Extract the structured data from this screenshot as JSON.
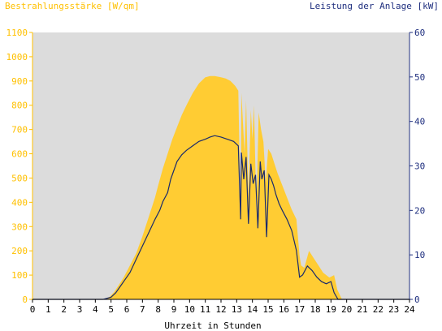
{
  "chart_data": {
    "type": "area",
    "left_axis_title": "Bestrahlungsstärke [W/qm]",
    "right_axis_title": "Leistung der Anlage [kW]",
    "xlabel": "Uhrzeit in Stunden",
    "xlim": [
      0,
      24
    ],
    "x_ticks": [
      "0",
      "1",
      "2",
      "3",
      "4",
      "5",
      "6",
      "7",
      "8",
      "9",
      "10",
      "11",
      "12",
      "13",
      "14",
      "15",
      "16",
      "17",
      "18",
      "19",
      "20",
      "21",
      "22",
      "23",
      "24"
    ],
    "y_left_lim": [
      0,
      1100
    ],
    "y_left_ticks": [
      "0",
      "100",
      "200",
      "300",
      "400",
      "500",
      "600",
      "700",
      "800",
      "900",
      "1000",
      "1100"
    ],
    "y_right_lim": [
      0,
      60
    ],
    "y_right_ticks": [
      "0",
      "10",
      "20",
      "30",
      "40",
      "50",
      "60"
    ],
    "grid": false,
    "colors": {
      "irradiance": "#ffcc33",
      "power": "#1a2a6c",
      "plot_bg": "#dcdcdc",
      "left_axis_text": "#ffc000",
      "right_axis_text": "#1f2f7f"
    },
    "series": [
      {
        "axis": "left",
        "style": "area",
        "x": [
          0,
          4.5,
          4.9,
          5.2,
          5.5,
          5.8,
          6.2,
          6.6,
          7.0,
          7.4,
          7.8,
          8.0,
          8.3,
          8.6,
          8.9,
          9.2,
          9.5,
          9.8,
          10.2,
          10.6,
          11.0,
          11.3,
          11.6,
          12.0,
          12.3,
          12.6,
          12.9,
          13.1,
          13.25,
          13.3,
          13.5,
          13.6,
          13.75,
          13.9,
          14.0,
          14.1,
          14.25,
          14.4,
          14.55,
          14.7,
          14.85,
          15.0,
          15.2,
          15.4,
          15.6,
          15.9,
          16.2,
          16.5,
          16.8,
          17.0,
          17.1,
          17.3,
          17.6,
          17.9,
          18.2,
          18.5,
          18.9,
          19.2,
          19.4,
          19.7,
          20.0,
          24
        ],
        "y": [
          0,
          0,
          10,
          30,
          60,
          90,
          140,
          190,
          260,
          340,
          420,
          470,
          540,
          600,
          660,
          710,
          760,
          800,
          850,
          890,
          915,
          920,
          920,
          915,
          910,
          900,
          880,
          860,
          330,
          850,
          600,
          820,
          420,
          780,
          660,
          800,
          360,
          770,
          700,
          650,
          480,
          620,
          600,
          560,
          520,
          470,
          420,
          370,
          330,
          180,
          140,
          130,
          200,
          170,
          140,
          110,
          90,
          100,
          40,
          0,
          0,
          0
        ]
      },
      {
        "axis": "right",
        "style": "line",
        "x": [
          0,
          4.5,
          5.0,
          5.3,
          5.6,
          5.9,
          6.2,
          6.6,
          7.0,
          7.4,
          7.8,
          8.1,
          8.3,
          8.6,
          8.8,
          9.0,
          9.2,
          9.5,
          9.8,
          10.2,
          10.6,
          11.0,
          11.3,
          11.6,
          12.0,
          12.4,
          12.8,
          13.1,
          13.25,
          13.3,
          13.45,
          13.6,
          13.75,
          13.9,
          14.05,
          14.2,
          14.35,
          14.5,
          14.6,
          14.75,
          14.9,
          15.05,
          15.2,
          15.35,
          15.5,
          15.7,
          15.9,
          16.2,
          16.5,
          16.8,
          17.0,
          17.2,
          17.5,
          17.8,
          18.1,
          18.4,
          18.7,
          19.0,
          19.2,
          19.45,
          19.7,
          24
        ],
        "y": [
          0,
          0,
          0.5,
          1.5,
          3,
          4.5,
          6,
          9,
          12,
          15,
          18,
          20,
          22,
          24,
          27,
          29,
          31,
          32.5,
          33.5,
          34.5,
          35.5,
          36,
          36.5,
          36.8,
          36.5,
          36,
          35.5,
          34.5,
          18,
          33,
          27,
          32,
          17,
          30.5,
          26,
          28,
          16,
          31,
          27,
          29,
          14,
          28,
          27,
          25.5,
          23.5,
          21.5,
          20,
          18,
          15.5,
          11,
          5,
          5.5,
          7.5,
          6.5,
          5,
          4,
          3.5,
          4,
          1.5,
          0,
          0,
          0
        ]
      }
    ]
  }
}
